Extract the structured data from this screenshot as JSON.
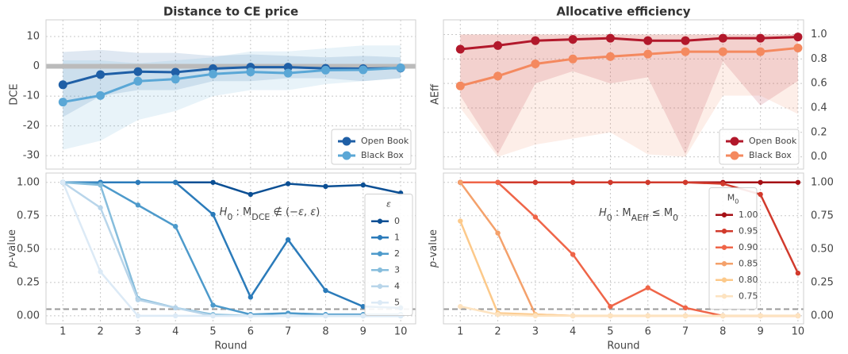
{
  "chart_data": [
    {
      "type": "line",
      "title": "Distance to CE price",
      "ylabel": "DCE",
      "yaxis_side": "left",
      "x": [
        1,
        2,
        3,
        4,
        5,
        6,
        7,
        8,
        9,
        10
      ],
      "xlim": [
        0.55,
        10.4
      ],
      "xticks": [
        1,
        2,
        3,
        4,
        5,
        6,
        7,
        8,
        9,
        10
      ],
      "show_xticklabels": false,
      "ylim": [
        -34.5,
        15.6
      ],
      "yticks": [
        -30,
        -20,
        -10,
        0,
        10
      ],
      "grid": true,
      "legend_loc": "lower right",
      "hline": 0,
      "hline_color": "#bbbbbb",
      "hline_style": "solid",
      "series": [
        {
          "name": "Open Book",
          "color": "#1f5fa6",
          "values": [
            -6.2,
            -2.8,
            -1.8,
            -2.0,
            -0.8,
            -0.3,
            -0.3,
            -0.7,
            -0.8,
            -0.6
          ],
          "lower": [
            -17,
            -10,
            -8,
            -8,
            -5,
            -5,
            -4,
            -4,
            -5,
            -4
          ],
          "upper": [
            4.8,
            5.5,
            4.5,
            4.5,
            3.5,
            4,
            3.5,
            3,
            3.5,
            3
          ]
        },
        {
          "name": "Black Box",
          "color": "#5aa7d6",
          "values": [
            -12,
            -9.8,
            -5,
            -4.3,
            -2.6,
            -1.9,
            -2.3,
            -1.3,
            -1.2,
            -0.5
          ],
          "lower": [
            -28,
            -25,
            -18,
            -15,
            -10,
            -8,
            -8,
            -6,
            -5,
            -4
          ],
          "upper": [
            2,
            2,
            1,
            2,
            3,
            5,
            5,
            6,
            7,
            7
          ]
        }
      ]
    },
    {
      "type": "line",
      "title": "Allocative efficiency",
      "ylabel": "AEff",
      "yaxis_side": "right",
      "x": [
        1,
        2,
        3,
        4,
        5,
        6,
        7,
        8,
        9,
        10
      ],
      "xlim": [
        0.55,
        10.15
      ],
      "xticks": [
        1,
        2,
        3,
        4,
        5,
        6,
        7,
        8,
        9,
        10
      ],
      "show_xticklabels": false,
      "ylim": [
        -0.1,
        1.12
      ],
      "yticks": [
        {
          "value": 0,
          "label": "0.0"
        },
        {
          "value": 0.2,
          "label": "0.2"
        },
        {
          "value": 0.4,
          "label": "0.4"
        },
        {
          "value": 0.6,
          "label": "0.6"
        },
        {
          "value": 0.8,
          "label": "0.8"
        },
        {
          "value": 1,
          "label": "1.0"
        }
      ],
      "grid": true,
      "legend_loc": "lower right",
      "series": [
        {
          "name": "Open Book",
          "color": "#b2182b",
          "values": [
            0.88,
            0.91,
            0.95,
            0.96,
            0.97,
            0.95,
            0.95,
            0.97,
            0.97,
            0.98
          ],
          "lower": [
            0.5,
            0.02,
            0.6,
            0.7,
            0.6,
            0.65,
            0.02,
            0.78,
            0.42,
            0.62
          ],
          "upper": [
            1,
            1,
            1,
            1,
            1,
            1,
            1,
            1,
            1,
            1
          ]
        },
        {
          "name": "Black Box",
          "color": "#f4895f",
          "values": [
            0.58,
            0.66,
            0.76,
            0.8,
            0.82,
            0.84,
            0.86,
            0.86,
            0.86,
            0.89
          ],
          "lower": [
            0.4,
            0.0,
            0.1,
            0.15,
            0.2,
            0.02,
            0.0,
            0.5,
            0.5,
            0.35
          ],
          "upper": [
            1,
            1,
            1,
            1,
            1,
            1,
            1,
            1,
            1,
            1
          ]
        }
      ]
    },
    {
      "type": "line",
      "ylabel": [
        {
          "text": "p",
          "italic": true
        },
        {
          "text": "-value"
        }
      ],
      "xlabel": "Round",
      "yaxis_side": "left",
      "x": [
        1,
        2,
        3,
        4,
        5,
        6,
        7,
        8,
        9,
        10
      ],
      "xlim": [
        0.55,
        10.4
      ],
      "xticks": [
        1,
        2,
        3,
        4,
        5,
        6,
        7,
        8,
        9,
        10
      ],
      "show_xticklabels": true,
      "ylim": [
        -0.06,
        1.07
      ],
      "yticks": [
        {
          "value": 0,
          "label": "0.00"
        },
        {
          "value": 0.25,
          "label": "0.25"
        },
        {
          "value": 0.5,
          "label": "0.50"
        },
        {
          "value": 0.75,
          "label": "0.75"
        },
        {
          "value": 1,
          "label": "1.00"
        }
      ],
      "grid": true,
      "legend_loc": "center right",
      "legend_title": [
        {
          "text": "ε",
          "italic": true
        }
      ],
      "hline": 0.05,
      "hline_color": "#999999",
      "hline_style": "dashed",
      "annotation": [
        {
          "text": "H",
          "italic": true
        },
        {
          "text": "0",
          "sub": true
        },
        {
          "text": " : M"
        },
        {
          "text": "DCE",
          "sub": true
        },
        {
          "text": " ∉ (−"
        },
        {
          "text": "ε",
          "italic": true
        },
        {
          "text": ", "
        },
        {
          "text": "ε",
          "italic": true
        },
        {
          "text": ")"
        }
      ],
      "series": [
        {
          "name": "0",
          "color": "#0b4f94",
          "values": [
            1,
            1,
            1,
            1,
            1,
            0.91,
            0.99,
            0.97,
            0.98,
            0.92
          ]
        },
        {
          "name": "1",
          "color": "#2b7bba",
          "values": [
            1,
            1,
            1,
            1,
            0.76,
            0.14,
            0.57,
            0.19,
            0.07,
            0.06
          ]
        },
        {
          "name": "2",
          "color": "#4d9acb",
          "values": [
            1,
            0.99,
            0.83,
            0.67,
            0.08,
            0.01,
            0.02,
            0.01,
            0.01,
            0.01
          ]
        },
        {
          "name": "3",
          "color": "#86bddc",
          "values": [
            1,
            0.98,
            0.13,
            0.06,
            0.01,
            0,
            0,
            0,
            0,
            0
          ]
        },
        {
          "name": "4",
          "color": "#b8d5ea",
          "values": [
            1,
            0.81,
            0.12,
            0.06,
            0,
            0,
            0,
            0,
            0,
            0
          ]
        },
        {
          "name": "5",
          "color": "#dceaf6",
          "values": [
            1,
            0.33,
            0,
            0,
            0,
            0,
            0,
            0,
            0,
            0
          ]
        }
      ]
    },
    {
      "type": "line",
      "ylabel": [
        {
          "text": "p",
          "italic": true
        },
        {
          "text": "-value"
        }
      ],
      "xlabel": "Round",
      "yaxis_side": "right",
      "x": [
        1,
        2,
        3,
        4,
        5,
        6,
        7,
        8,
        9,
        10
      ],
      "xlim": [
        0.55,
        10.15
      ],
      "xticks": [
        1,
        2,
        3,
        4,
        5,
        6,
        7,
        8,
        9,
        10
      ],
      "show_xticklabels": true,
      "ylim": [
        -0.06,
        1.07
      ],
      "yticks": [
        {
          "value": 0,
          "label": "0.00"
        },
        {
          "value": 0.25,
          "label": "0.25"
        },
        {
          "value": 0.5,
          "label": "0.50"
        },
        {
          "value": 0.75,
          "label": "0.75"
        },
        {
          "value": 1,
          "label": "1.00"
        }
      ],
      "grid": true,
      "legend_loc": "center",
      "legend_title": [
        {
          "text": "M"
        },
        {
          "text": "0",
          "sub": true
        }
      ],
      "hline": 0.05,
      "hline_color": "#999999",
      "hline_style": "dashed",
      "annotation": [
        {
          "text": "H",
          "italic": true
        },
        {
          "text": "0",
          "sub": true
        },
        {
          "text": " : M"
        },
        {
          "text": "AEff",
          "sub": true
        },
        {
          "text": " ≤ M"
        },
        {
          "text": "0",
          "sub": true
        }
      ],
      "series": [
        {
          "name": "1.00",
          "color": "#a50f15",
          "values": [
            1,
            1,
            1,
            1,
            1,
            1,
            1,
            1,
            1,
            1
          ]
        },
        {
          "name": "0.95",
          "color": "#d13a2c",
          "values": [
            1,
            1,
            1,
            1,
            1,
            1,
            1,
            0.99,
            0.91,
            0.32
          ]
        },
        {
          "name": "0.90",
          "color": "#ef6548",
          "values": [
            1,
            1,
            0.74,
            0.46,
            0.07,
            0.21,
            0.06,
            0,
            0,
            0
          ]
        },
        {
          "name": "0.85",
          "color": "#f4a16b",
          "values": [
            1,
            0.62,
            0.01,
            0,
            0,
            0,
            0,
            0,
            0,
            0
          ]
        },
        {
          "name": "0.80",
          "color": "#fcc98a",
          "values": [
            0.71,
            0.02,
            0.01,
            0,
            0,
            0,
            0,
            0,
            0,
            0
          ]
        },
        {
          "name": "0.75",
          "color": "#fde3c0",
          "values": [
            0.07,
            0.01,
            0,
            0,
            0,
            0,
            0,
            0,
            0,
            0
          ]
        }
      ]
    }
  ]
}
